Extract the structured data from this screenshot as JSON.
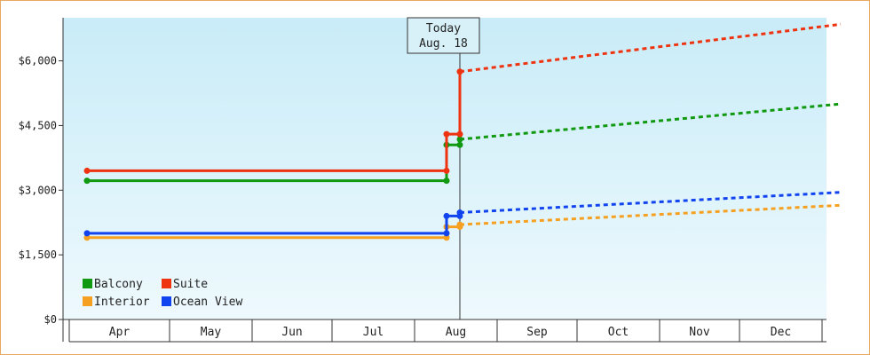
{
  "chart_data": {
    "type": "line",
    "title": "",
    "xlabel": "",
    "ylabel": "",
    "ylim": [
      0,
      7000
    ],
    "y_ticks": [
      0,
      1500,
      3000,
      4500,
      6000
    ],
    "y_tick_labels": [
      "$0",
      "$1,500",
      "$3,000",
      "$4,500",
      "$6,000"
    ],
    "months": [
      "Apr",
      "May",
      "Jun",
      "Jul",
      "Aug",
      "Sep",
      "Oct",
      "Nov",
      "Dec"
    ],
    "grid": false,
    "legend_position": "bottom-left",
    "callout": {
      "line1": "Today",
      "line2": "Aug. 18",
      "date": "2024-08-18"
    },
    "series": [
      {
        "name": "Balcony",
        "color": "#119911",
        "history": [
          [
            "2024-03-31",
            3220
          ],
          [
            "2024-08-13",
            3220
          ],
          [
            "2024-08-13",
            4050
          ],
          [
            "2024-08-18",
            4050
          ],
          [
            "2024-08-18",
            4180
          ]
        ],
        "markers": [
          [
            "2024-03-31",
            3220
          ],
          [
            "2024-08-13",
            3220
          ],
          [
            "2024-08-13",
            4050
          ],
          [
            "2024-08-18",
            4050
          ],
          [
            "2024-08-18",
            4180
          ]
        ],
        "forecast": [
          [
            "2024-08-18",
            4180
          ],
          [
            "2025-01-08",
            5000
          ]
        ]
      },
      {
        "name": "Suite",
        "color": "#ee3311",
        "history": [
          [
            "2024-03-31",
            3450
          ],
          [
            "2024-08-13",
            3450
          ],
          [
            "2024-08-13",
            4300
          ],
          [
            "2024-08-18",
            4300
          ],
          [
            "2024-08-18",
            5750
          ]
        ],
        "markers": [
          [
            "2024-03-31",
            3450
          ],
          [
            "2024-08-13",
            3450
          ],
          [
            "2024-08-13",
            4300
          ],
          [
            "2024-08-18",
            4300
          ],
          [
            "2024-08-18",
            5750
          ]
        ],
        "forecast": [
          [
            "2024-08-18",
            5750
          ],
          [
            "2025-01-08",
            6850
          ]
        ]
      },
      {
        "name": "Interior",
        "color": "#f5a020",
        "history": [
          [
            "2024-03-31",
            1900
          ],
          [
            "2024-08-13",
            1900
          ],
          [
            "2024-08-13",
            2150
          ],
          [
            "2024-08-18",
            2150
          ],
          [
            "2024-08-18",
            2200
          ]
        ],
        "markers": [
          [
            "2024-03-31",
            1900
          ],
          [
            "2024-08-13",
            1900
          ],
          [
            "2024-08-13",
            2150
          ],
          [
            "2024-08-18",
            2150
          ],
          [
            "2024-08-18",
            2200
          ]
        ],
        "forecast": [
          [
            "2024-08-18",
            2200
          ],
          [
            "2025-01-08",
            2650
          ]
        ]
      },
      {
        "name": "Ocean View",
        "color": "#1144ee",
        "history": [
          [
            "2024-03-31",
            2000
          ],
          [
            "2024-08-13",
            2000
          ],
          [
            "2024-08-13",
            2400
          ],
          [
            "2024-08-18",
            2400
          ],
          [
            "2024-08-18",
            2480
          ]
        ],
        "markers": [
          [
            "2024-03-31",
            2000
          ],
          [
            "2024-08-13",
            2000
          ],
          [
            "2024-08-13",
            2400
          ],
          [
            "2024-08-18",
            2400
          ],
          [
            "2024-08-18",
            2480
          ]
        ],
        "forecast": [
          [
            "2024-08-18",
            2480
          ],
          [
            "2025-01-08",
            2950
          ]
        ]
      }
    ]
  }
}
